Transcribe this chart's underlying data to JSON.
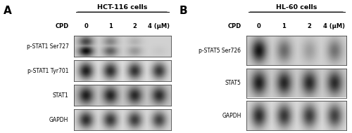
{
  "panel_A": {
    "title": "HCT-116 cells",
    "panel_label": "A",
    "cpd_label": "CPD",
    "concentrations": [
      "0",
      "1",
      "2",
      "4 (μM)"
    ],
    "rows": [
      {
        "label": "p-STAT1 Ser727",
        "band_intensities": [
          0.95,
          0.62,
          0.4,
          0.22
        ],
        "band2_intensities": [
          0.72,
          0.48,
          0.3,
          0.16
        ],
        "bg_gray": 0.82
      },
      {
        "label": "p-STAT1 Tyr701",
        "band_intensities": [
          0.88,
          0.82,
          0.8,
          0.78
        ],
        "band2_intensities": null,
        "bg_gray": 0.88
      },
      {
        "label": "STAT1",
        "band_intensities": [
          0.88,
          0.86,
          0.84,
          0.83
        ],
        "band2_intensities": null,
        "bg_gray": 0.78
      },
      {
        "label": "GAPDH",
        "band_intensities": [
          0.82,
          0.78,
          0.76,
          0.74
        ],
        "band2_intensities": null,
        "bg_gray": 0.86
      }
    ]
  },
  "panel_B": {
    "title": "HL-60 cells",
    "panel_label": "B",
    "cpd_label": "CPD",
    "concentrations": [
      "0",
      "1",
      "2",
      "4 (μM)"
    ],
    "rows": [
      {
        "label": "p-STAT5 Ser726",
        "band_intensities": [
          0.92,
          0.58,
          0.38,
          0.55
        ],
        "band2_intensities": null,
        "bg_gray": 0.82
      },
      {
        "label": "STAT5",
        "band_intensities": [
          0.88,
          0.85,
          0.84,
          0.83
        ],
        "band2_intensities": null,
        "bg_gray": 0.8
      },
      {
        "label": "GAPDH",
        "band_intensities": [
          0.82,
          0.78,
          0.76,
          0.74
        ],
        "band2_intensities": null,
        "bg_gray": 0.86
      }
    ]
  },
  "figure_bg": "#ffffff"
}
